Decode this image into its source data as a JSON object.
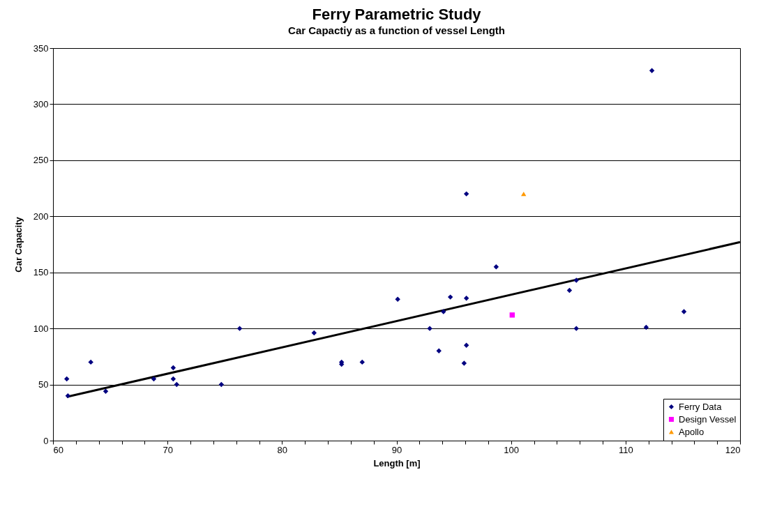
{
  "chart_data": {
    "type": "scatter",
    "title": "Ferry Parametric Study",
    "subtitle": "Car Capactiy as a function of vessel Length",
    "xlabel": "Length [m]",
    "ylabel": "Car Capacity",
    "xlim": [
      60,
      120
    ],
    "ylim": [
      0,
      350
    ],
    "xticks": [
      60,
      {
        "value": 62,
        "label": null
      },
      {
        "value": 64,
        "label": null
      },
      {
        "value": 66,
        "label": null
      },
      {
        "value": 68,
        "label": null
      },
      70,
      {
        "value": 72,
        "label": null
      },
      {
        "value": 74,
        "label": null
      },
      {
        "value": 76,
        "label": null
      },
      {
        "value": 78,
        "label": null
      },
      80,
      {
        "value": 82,
        "label": null
      },
      {
        "value": 84,
        "label": null
      },
      {
        "value": 86,
        "label": null
      },
      {
        "value": 88,
        "label": null
      },
      90,
      {
        "value": 92,
        "label": null
      },
      {
        "value": 94,
        "label": null
      },
      {
        "value": 96,
        "label": null
      },
      {
        "value": 98,
        "label": null
      },
      100,
      {
        "value": 102,
        "label": null
      },
      {
        "value": 104,
        "label": null
      },
      {
        "value": 106,
        "label": null
      },
      {
        "value": 108,
        "label": null
      },
      110,
      {
        "value": 112,
        "label": null
      },
      {
        "value": 114,
        "label": null
      },
      {
        "value": 116,
        "label": null
      },
      {
        "value": 118,
        "label": null
      },
      120
    ],
    "yticks": [
      0,
      50,
      100,
      150,
      200,
      250,
      300,
      350
    ],
    "grid": "y",
    "legend": "bottom right",
    "series": [
      {
        "name": "Ferry Data",
        "color": "#000080",
        "marker": "diamond",
        "x": [
          61.2,
          61.3,
          63.3,
          64.6,
          68.8,
          70.5,
          70.5,
          70.8,
          74.7,
          76.3,
          82.8,
          85.2,
          85.2,
          87.0,
          90.1,
          92.9,
          93.7,
          94.1,
          94.7,
          95.9,
          96.1,
          96.1,
          96.1,
          98.7,
          105.1,
          105.7,
          105.7,
          111.8,
          112.3,
          115.1
        ],
        "values": [
          55,
          40,
          70,
          44,
          55,
          65,
          55,
          50,
          50,
          100,
          96,
          70,
          68,
          70,
          126,
          100,
          80,
          115,
          128,
          69,
          127,
          220,
          85,
          155,
          134,
          143,
          100,
          101,
          330,
          115
        ]
      },
      {
        "name": "Design Vessel",
        "color": "#ff00ff",
        "marker": "square",
        "x": [
          100.1
        ],
        "values": [
          112
        ]
      },
      {
        "name": "Apollo",
        "color": "#ff9900",
        "marker": "triangle",
        "x": [
          101.1
        ],
        "values": [
          220
        ]
      },
      {
        "type": "line",
        "color": "#000000",
        "marker": "none",
        "x": [
          61.2,
          120
        ],
        "values": [
          39,
          177
        ]
      }
    ]
  }
}
